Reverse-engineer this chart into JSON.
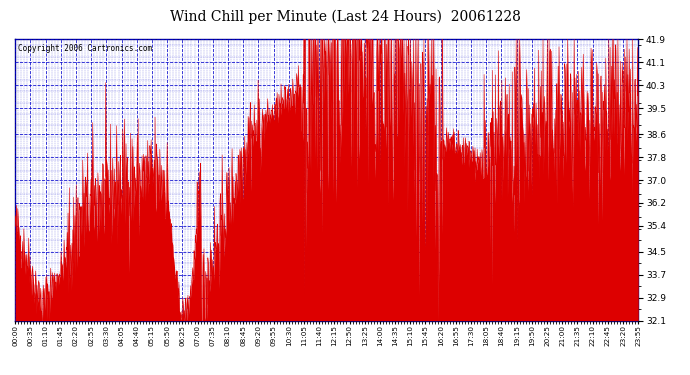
{
  "title": "Wind Chill per Minute (Last 24 Hours)  20061228",
  "copyright_text": "Copyright 2006 Cartronics.com",
  "background_color": "#ffffff",
  "plot_bg_color": "#ffffff",
  "line_color": "#dd0000",
  "grid_color": "#0000cc",
  "border_color": "#000080",
  "ylim": [
    32.1,
    41.9
  ],
  "yticks": [
    32.1,
    32.9,
    33.7,
    34.5,
    35.4,
    36.2,
    37.0,
    37.8,
    38.6,
    39.5,
    40.3,
    41.1,
    41.9
  ],
  "xtick_labels": [
    "00:00",
    "00:35",
    "01:10",
    "01:45",
    "02:20",
    "02:55",
    "03:30",
    "04:05",
    "04:40",
    "05:15",
    "05:50",
    "06:25",
    "07:00",
    "07:35",
    "08:10",
    "08:45",
    "09:20",
    "09:55",
    "10:30",
    "11:05",
    "11:40",
    "12:15",
    "12:50",
    "13:25",
    "14:00",
    "14:35",
    "15:10",
    "15:45",
    "16:20",
    "16:55",
    "17:30",
    "18:05",
    "18:40",
    "19:15",
    "19:50",
    "20:25",
    "21:00",
    "21:35",
    "22:10",
    "22:45",
    "23:20",
    "23:55"
  ],
  "num_points": 1440,
  "seed": 42
}
